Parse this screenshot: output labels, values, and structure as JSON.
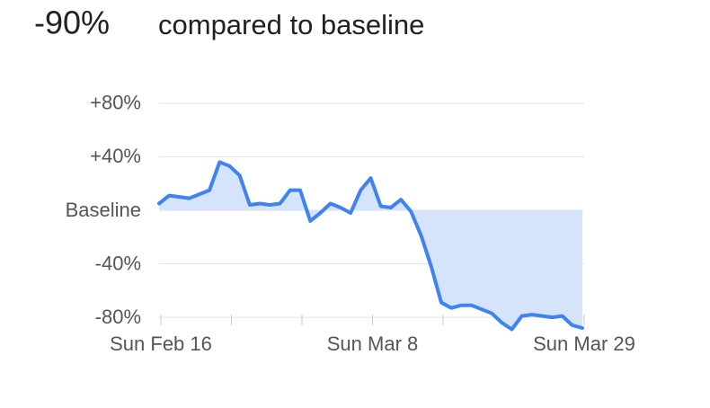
{
  "chart_data": {
    "type": "area-line",
    "headline": "-90%",
    "title": "compared to baseline",
    "categories": [
      "Sun Feb 16",
      null,
      null,
      null,
      null,
      null,
      null,
      null,
      null,
      null,
      null,
      null,
      null,
      null,
      null,
      null,
      null,
      null,
      null,
      null,
      null,
      "Sun Mar 8",
      null,
      null,
      null,
      null,
      null,
      null,
      null,
      null,
      null,
      null,
      null,
      null,
      null,
      null,
      null,
      null,
      null,
      null,
      null,
      null,
      "Sun Mar 29"
    ],
    "values": [
      5,
      11,
      10,
      9,
      12,
      15,
      36,
      33,
      26,
      4,
      5,
      4,
      5,
      15,
      15,
      -8,
      -2,
      5,
      2,
      -2,
      15,
      24,
      3,
      2,
      8,
      -1,
      -19,
      -42,
      -69,
      -73,
      -71,
      -71,
      -74,
      -77,
      -84,
      -89,
      -79,
      -78,
      -79,
      -80,
      -79,
      -86,
      -88
    ],
    "color": "#3f83f0",
    "fill_color": "#d5e3fb",
    "ylim": [
      -90,
      85
    ],
    "yticks": [
      {
        "value": 80,
        "label": "+80%"
      },
      {
        "value": 40,
        "label": "+40%"
      },
      {
        "value": 0,
        "label": "Baseline"
      },
      {
        "value": -40,
        "label": "-40%"
      },
      {
        "value": -80,
        "label": "-80%"
      }
    ],
    "grid": true
  }
}
